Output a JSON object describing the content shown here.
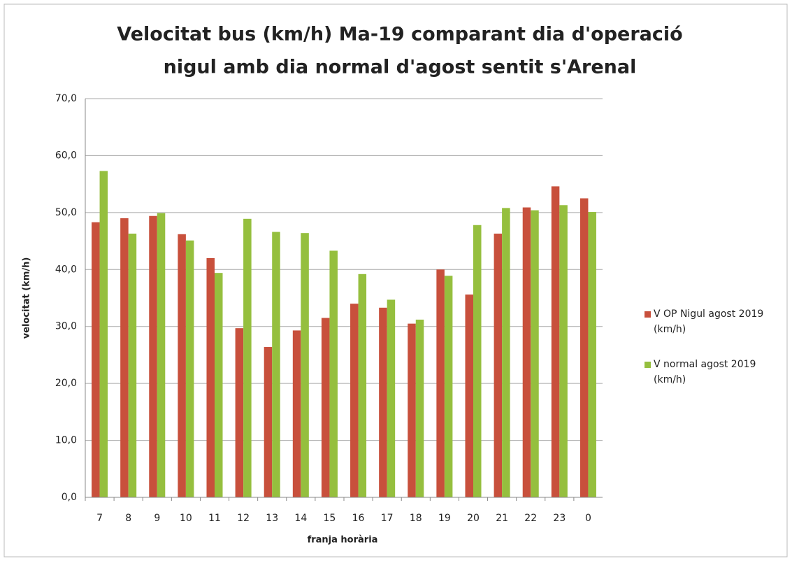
{
  "chart_data": {
    "type": "bar",
    "title": [
      "Velocitat bus (km/h) Ma-19 comparant dia d'operació",
      "nigul amb dia normal d'agost sentit s'Arenal"
    ],
    "x_label": "franja horària",
    "y_label": "velocitat (km/h)",
    "categories": [
      "7",
      "8",
      "9",
      "10",
      "11",
      "12",
      "13",
      "14",
      "15",
      "16",
      "17",
      "18",
      "19",
      "20",
      "21",
      "22",
      "23",
      "0"
    ],
    "series": [
      {
        "name": "V OP Nigul agost 2019 (km/h)",
        "color": "#c8503c",
        "values": [
          48.3,
          49.0,
          49.4,
          46.2,
          42.0,
          29.7,
          26.4,
          29.3,
          31.5,
          34.0,
          33.3,
          30.5,
          40.0,
          35.6,
          46.3,
          50.9,
          54.6,
          52.5
        ]
      },
      {
        "name": "V normal agost 2019 (km/h)",
        "color": "#95bf3e",
        "values": [
          57.3,
          46.3,
          49.9,
          45.1,
          39.4,
          48.9,
          46.6,
          46.4,
          43.3,
          39.2,
          34.7,
          31.2,
          38.9,
          47.8,
          50.8,
          50.4,
          51.3,
          50.1
        ]
      }
    ],
    "ylim": [
      0,
      70
    ],
    "yticks": [
      {
        "value": 0,
        "label": "0,0"
      },
      {
        "value": 10,
        "label": "10,0"
      },
      {
        "value": 20,
        "label": "20,0"
      },
      {
        "value": 30,
        "label": "30,0"
      },
      {
        "value": 40,
        "label": "40,0"
      },
      {
        "value": 50,
        "label": "50,0"
      },
      {
        "value": 60,
        "label": "60,0"
      },
      {
        "value": 70,
        "label": "70,0"
      }
    ],
    "grid": true,
    "legend": "right"
  }
}
